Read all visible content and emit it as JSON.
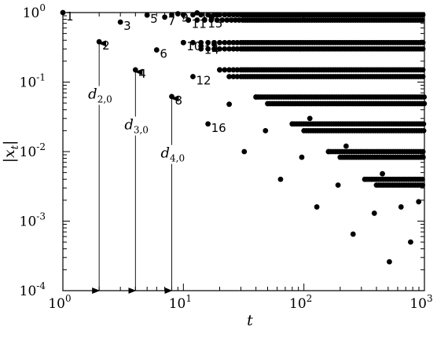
{
  "chart_data": {
    "type": "scatter",
    "xlabel": "t",
    "ylabel": "|x_t|",
    "x_scale": "log",
    "y_scale": "log",
    "xlim": [
      1,
      1000
    ],
    "ylim": [
      0.0001,
      1
    ],
    "grid": false,
    "x_ticks": [
      {
        "value": 1,
        "base": "10",
        "exp": "0"
      },
      {
        "value": 10,
        "base": "10",
        "exp": "1"
      },
      {
        "value": 100,
        "base": "10",
        "exp": "2"
      },
      {
        "value": 1000,
        "base": "10",
        "exp": "3"
      }
    ],
    "y_ticks": [
      {
        "value": 1,
        "base": "10",
        "exp": "0"
      },
      {
        "value": 0.1,
        "base": "10",
        "exp": "-1"
      },
      {
        "value": 0.01,
        "base": "10",
        "exp": "-2"
      },
      {
        "value": 0.001,
        "base": "10",
        "exp": "-3"
      },
      {
        "value": 0.0001,
        "base": "10",
        "exp": "-4"
      }
    ],
    "labeled_points": [
      {
        "label": "1",
        "x": 1,
        "y": 1.0
      },
      {
        "label": "2",
        "x": 2,
        "y": 0.38
      },
      {
        "label": "3",
        "x": 3,
        "y": 0.73
      },
      {
        "label": "4",
        "x": 4,
        "y": 0.15
      },
      {
        "label": "5",
        "x": 5,
        "y": 0.92
      },
      {
        "label": "6",
        "x": 6,
        "y": 0.29
      },
      {
        "label": "7",
        "x": 7,
        "y": 0.86
      },
      {
        "label": "8",
        "x": 8,
        "y": 0.062
      },
      {
        "label": "9",
        "x": 9,
        "y": 0.96
      },
      {
        "label": "10",
        "x": 10,
        "y": 0.37
      },
      {
        "label": "11",
        "x": 11,
        "y": 0.78
      },
      {
        "label": "12",
        "x": 12,
        "y": 0.12
      },
      {
        "label": "13",
        "x": 13,
        "y": 0.99
      },
      {
        "label": "14",
        "x": 14,
        "y": 0.33
      },
      {
        "label": "15",
        "x": 15,
        "y": 0.79
      },
      {
        "label": "16",
        "x": 16,
        "y": 0.025
      }
    ],
    "dense_bands": [
      {
        "y": 0.93,
        "x_from": 8,
        "x_to": 1000
      },
      {
        "y": 0.78,
        "x_from": 11,
        "x_to": 1000
      },
      {
        "y": 0.37,
        "x_from": 10,
        "x_to": 1000
      },
      {
        "y": 0.3,
        "x_from": 14,
        "x_to": 1000
      },
      {
        "y": 0.15,
        "x_from": 20,
        "x_to": 1000
      },
      {
        "y": 0.12,
        "x_from": 24,
        "x_to": 1000
      },
      {
        "y": 0.061,
        "x_from": 40,
        "x_to": 1000
      },
      {
        "y": 0.049,
        "x_from": 50,
        "x_to": 1000
      },
      {
        "y": 0.025,
        "x_from": 80,
        "x_to": 1000
      },
      {
        "y": 0.02,
        "x_from": 100,
        "x_to": 1000
      },
      {
        "y": 0.01,
        "x_from": 160,
        "x_to": 1000
      },
      {
        "y": 0.0083,
        "x_from": 200,
        "x_to": 1000
      },
      {
        "y": 0.004,
        "x_from": 320,
        "x_to": 1000
      },
      {
        "y": 0.0033,
        "x_from": 400,
        "x_to": 1000
      }
    ],
    "sparse_points": [
      {
        "x": 17,
        "y": 0.88
      },
      {
        "x": 18,
        "y": 0.35
      },
      {
        "x": 19,
        "y": 0.93
      },
      {
        "x": 20,
        "y": 0.15
      },
      {
        "x": 24,
        "y": 0.048
      },
      {
        "x": 32,
        "y": 0.01
      },
      {
        "x": 40,
        "y": 0.061
      },
      {
        "x": 48,
        "y": 0.02
      },
      {
        "x": 64,
        "y": 0.004
      },
      {
        "x": 80,
        "y": 0.025
      },
      {
        "x": 96,
        "y": 0.0083
      },
      {
        "x": 112,
        "y": 0.03
      },
      {
        "x": 128,
        "y": 0.0016
      },
      {
        "x": 160,
        "y": 0.01
      },
      {
        "x": 192,
        "y": 0.0033
      },
      {
        "x": 224,
        "y": 0.012
      },
      {
        "x": 256,
        "y": 0.00065
      },
      {
        "x": 320,
        "y": 0.004
      },
      {
        "x": 384,
        "y": 0.0013
      },
      {
        "x": 448,
        "y": 0.0048
      },
      {
        "x": 512,
        "y": 0.00026
      },
      {
        "x": 640,
        "y": 0.0016
      },
      {
        "x": 768,
        "y": 0.0005
      },
      {
        "x": 896,
        "y": 0.0019
      }
    ],
    "annotations": [
      {
        "name": "d-2-0",
        "main": "d",
        "sub": "2,0",
        "x": 2,
        "from_y": 0.0001,
        "to_y": 0.36,
        "label_y": 0.058
      },
      {
        "name": "d-3-0",
        "main": "d",
        "sub": "3,0",
        "x": 4,
        "from_y": 0.0001,
        "to_y": 0.14,
        "label_y": 0.021
      },
      {
        "name": "d-4-0",
        "main": "d",
        "sub": "4,0",
        "x": 8,
        "from_y": 0.0001,
        "to_y": 0.058,
        "label_y": 0.0082
      }
    ]
  }
}
